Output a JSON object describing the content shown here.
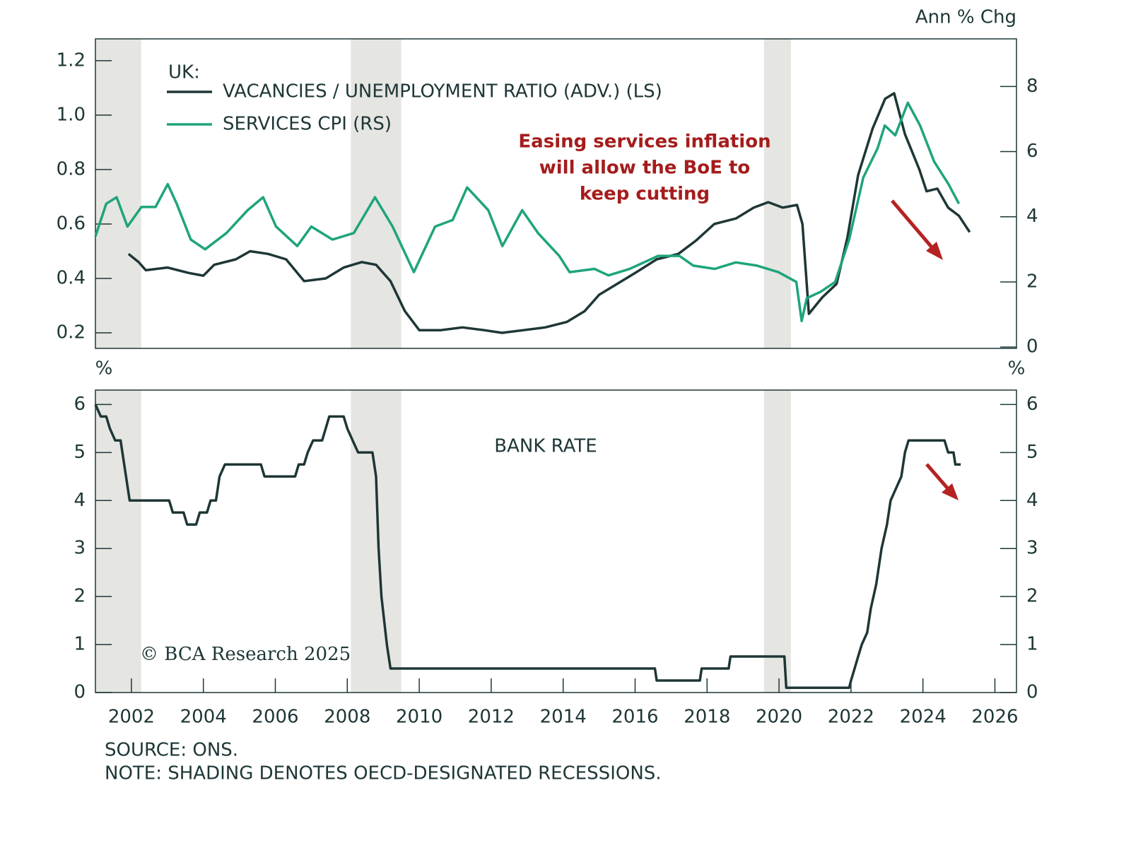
{
  "chart_data": [
    {
      "type": "line",
      "y2label": "Ann % Chg",
      "legend_title": "UK:",
      "annotation": [
        "Easing services inflation",
        "will allow the BoE to",
        "keep cutting"
      ],
      "xlim": [
        2001,
        2026.6
      ],
      "ylim": [
        0.143,
        1.28
      ],
      "yticks": [
        0.2,
        0.4,
        0.6,
        0.8,
        {
          "value": 1,
          "label": "1.0"
        },
        1.2
      ],
      "y2lim": [
        -0.04,
        9.46
      ],
      "y2ticks": [
        0,
        2,
        4,
        6,
        8
      ],
      "series": [
        {
          "name": "VACANCIES / UNEMPLOYMENT RATIO (ADV.) (LS)",
          "color": "#1e3636",
          "axis": "y",
          "x": [
            2001.92,
            2002.2,
            2002.4,
            2003,
            2003.6,
            2004,
            2004.3,
            2004.9,
            2005.3,
            2005.8,
            2006.3,
            2006.8,
            2007.4,
            2007.9,
            2008.4,
            2008.8,
            2009.2,
            2009.6,
            2010,
            2010.6,
            2011.2,
            2011.8,
            2012.3,
            2012.9,
            2013.5,
            2014.1,
            2014.6,
            2015,
            2015.5,
            2016,
            2016.6,
            2017.2,
            2017.7,
            2018.2,
            2018.8,
            2019.3,
            2019.7,
            2020.1,
            2020.5,
            2020.65,
            2020.83,
            2021.2,
            2021.6,
            2021.9,
            2022.2,
            2022.6,
            2022.95,
            2023.2,
            2023.5,
            2023.9,
            2024.1,
            2024.4,
            2024.7,
            2025,
            2025.3
          ],
          "values": [
            0.49,
            0.46,
            0.43,
            0.44,
            0.42,
            0.41,
            0.45,
            0.47,
            0.5,
            0.49,
            0.47,
            0.39,
            0.4,
            0.44,
            0.46,
            0.45,
            0.39,
            0.28,
            0.21,
            0.21,
            0.22,
            0.21,
            0.2,
            0.21,
            0.22,
            0.24,
            0.28,
            0.34,
            0.38,
            0.42,
            0.47,
            0.49,
            0.54,
            0.6,
            0.62,
            0.66,
            0.68,
            0.66,
            0.67,
            0.6,
            0.27,
            0.33,
            0.38,
            0.55,
            0.78,
            0.95,
            1.06,
            1.08,
            0.93,
            0.8,
            0.72,
            0.73,
            0.66,
            0.63,
            0.57
          ]
        },
        {
          "name": "SERVICES CPI (RS)",
          "color": "#1ea47c",
          "axis": "y2",
          "x": [
            2001.0,
            2001.3,
            2001.59,
            2001.89,
            2002.28,
            2002.67,
            2003.01,
            2003.26,
            2003.65,
            2004.05,
            2004.64,
            2005.23,
            2005.66,
            2006.02,
            2006.61,
            2007.0,
            2007.59,
            2008.18,
            2008.77,
            2009.26,
            2009.85,
            2010.44,
            2010.93,
            2011.33,
            2011.92,
            2012.31,
            2012.86,
            2013.3,
            2013.89,
            2014.18,
            2014.87,
            2015.26,
            2015.85,
            2016.64,
            2017.23,
            2017.62,
            2018.21,
            2018.8,
            2019.39,
            2019.98,
            2020.48,
            2020.63,
            2020.77,
            2021.16,
            2021.56,
            2021.95,
            2022.34,
            2022.74,
            2022.94,
            2023.23,
            2023.58,
            2023.92,
            2024.31,
            2024.71,
            2025.0
          ],
          "values": [
            3.4,
            4.4,
            4.6,
            3.7,
            4.3,
            4.3,
            5.0,
            4.4,
            3.3,
            3.0,
            3.5,
            4.2,
            4.6,
            3.7,
            3.1,
            3.7,
            3.3,
            3.5,
            4.6,
            3.7,
            2.3,
            3.7,
            3.9,
            4.9,
            4.2,
            3.1,
            4.2,
            3.5,
            2.8,
            2.3,
            2.4,
            2.2,
            2.4,
            2.8,
            2.8,
            2.5,
            2.4,
            2.6,
            2.5,
            2.3,
            2.0,
            0.8,
            1.5,
            1.7,
            2.0,
            3.3,
            5.2,
            6.1,
            6.8,
            6.5,
            7.5,
            6.8,
            5.7,
            5.0,
            4.4
          ]
        }
      ]
    },
    {
      "type": "line",
      "ylabel": "%",
      "y2label": "%",
      "annotation": "© BCA Research 2025",
      "xlim": [
        2001,
        2026.6
      ],
      "xticks": [
        2002,
        2004,
        2006,
        2008,
        2010,
        2012,
        2014,
        2016,
        2018,
        2020,
        2022,
        2024,
        2026
      ],
      "ylim": [
        0,
        6.3
      ],
      "yticks": [
        0,
        1,
        2,
        3,
        4,
        5,
        6
      ],
      "series": [
        {
          "name": "BANK RATE",
          "color": "#1e3636",
          "x": [
            2001.0,
            2001.15,
            2001.3,
            2001.4,
            2001.55,
            2001.7,
            2001.8,
            2001.95,
            2003.05,
            2003.15,
            2003.45,
            2003.55,
            2003.8,
            2003.9,
            2004.1,
            2004.2,
            2004.35,
            2004.45,
            2004.6,
            2005.6,
            2005.7,
            2006.55,
            2006.65,
            2006.8,
            2006.9,
            2007.05,
            2007.3,
            2007.4,
            2007.5,
            2007.9,
            2008.0,
            2008.15,
            2008.3,
            2008.7,
            2008.8,
            2008.87,
            2008.95,
            2009.1,
            2009.2,
            2016.55,
            2016.6,
            2017.8,
            2017.85,
            2018.6,
            2018.65,
            2020.15,
            2020.2,
            2021.95,
            2022.0,
            2022.1,
            2022.2,
            2022.3,
            2022.45,
            2022.55,
            2022.7,
            2022.85,
            2023.0,
            2023.1,
            2023.25,
            2023.4,
            2023.5,
            2023.6,
            2024.6,
            2024.7,
            2024.85,
            2024.9,
            2025.05
          ],
          "values": [
            6,
            5.75,
            5.75,
            5.5,
            5.25,
            5.25,
            4.75,
            4.0,
            4.0,
            3.75,
            3.75,
            3.5,
            3.5,
            3.75,
            3.75,
            4.0,
            4.0,
            4.5,
            4.75,
            4.75,
            4.5,
            4.5,
            4.75,
            4.75,
            5.0,
            5.25,
            5.25,
            5.5,
            5.75,
            5.75,
            5.5,
            5.25,
            5.0,
            5.0,
            4.5,
            3.0,
            2.0,
            1.0,
            0.5,
            0.5,
            0.25,
            0.25,
            0.5,
            0.5,
            0.75,
            0.75,
            0.1,
            0.1,
            0.25,
            0.5,
            0.75,
            1.0,
            1.25,
            1.75,
            2.25,
            3.0,
            3.5,
            4.0,
            4.25,
            4.5,
            5.0,
            5.25,
            5.25,
            5.0,
            5.0,
            4.75,
            4.75
          ]
        }
      ]
    }
  ],
  "recessions": [
    [
      2001,
      2002.27
    ],
    [
      2008.1,
      2009.5
    ],
    [
      2019.58,
      2020.33
    ]
  ],
  "source": "SOURCE: ONS.",
  "note": "NOTE: SHADING DENOTES OECD-DESIGNATED RECESSIONS."
}
